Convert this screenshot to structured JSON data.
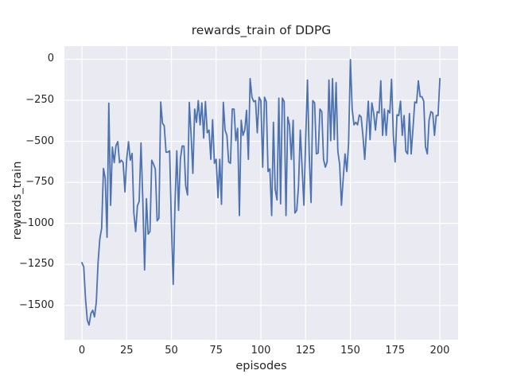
{
  "figure": {
    "title": "rewards_train of DDPG",
    "xlabel": "episodes",
    "ylabel": "rewards_train"
  },
  "chart_data": {
    "type": "line",
    "title": "rewards_train of DDPG",
    "xlabel": "episodes",
    "ylabel": "rewards_train",
    "grid": true,
    "legend": false,
    "xlim": [
      -9.8,
      210.2
    ],
    "ylim": [
      -1710,
      80
    ],
    "x_ticks": {
      "values": [
        0,
        25,
        50,
        75,
        100,
        125,
        150,
        175,
        200
      ],
      "labels": [
        "0",
        "25",
        "50",
        "75",
        "100",
        "125",
        "150",
        "175",
        "200"
      ]
    },
    "y_ticks": {
      "values": [
        0,
        -250,
        -500,
        -750,
        -1000,
        -1250,
        -1500
      ],
      "labels": [
        "0",
        "−250",
        "−500",
        "−750",
        "−1000",
        "−1250",
        "−1500"
      ]
    },
    "styles": {
      "fig_bg": "#ffffff",
      "axes_bg": "#eaeaf2",
      "grid_color": "#ffffff",
      "line_color": "#4c72b0",
      "text_color": "#262626",
      "line_width": 1.8
    },
    "series": [
      {
        "name": "rewards_train",
        "color": "#4c72b0",
        "x_start": 0,
        "x_step": 1,
        "y": [
          -1240,
          -1265,
          -1465,
          -1590,
          -1620,
          -1550,
          -1530,
          -1570,
          -1480,
          -1240,
          -1095,
          -1030,
          -665,
          -725,
          -1085,
          -268,
          -890,
          -535,
          -630,
          -527,
          -502,
          -630,
          -615,
          -630,
          -808,
          -608,
          -502,
          -615,
          -574,
          -937,
          -1050,
          -893,
          -866,
          -510,
          -850,
          -1284,
          -850,
          -1066,
          -1050,
          -615,
          -640,
          -670,
          -985,
          -969,
          -260,
          -390,
          -405,
          -566,
          -566,
          -558,
          -1000,
          -1372,
          -889,
          -558,
          -921,
          -609,
          -529,
          -529,
          -771,
          -827,
          -263,
          -464,
          -695,
          -303,
          -384,
          -252,
          -400,
          -266,
          -480,
          -258,
          -448,
          -432,
          -610,
          -368,
          -634,
          -610,
          -843,
          -610,
          -884,
          -263,
          -432,
          -464,
          -626,
          -634,
          -303,
          -303,
          -496,
          -421,
          -953,
          -372,
          -464,
          -432,
          -311,
          -610,
          -118,
          -231,
          -258,
          -252,
          -448,
          -231,
          -252,
          -658,
          -231,
          -258,
          -684,
          -668,
          -953,
          -384,
          -792,
          -857,
          -237,
          -881,
          -237,
          -258,
          -953,
          -352,
          -400,
          -610,
          -372,
          -937,
          -921,
          -776,
          -432,
          -658,
          -889,
          -496,
          -126,
          -577,
          -873,
          -252,
          -266,
          -577,
          -571,
          -303,
          -319,
          -610,
          -658,
          -626,
          -126,
          -496,
          -118,
          -490,
          -142,
          -561,
          -642,
          -889,
          -723,
          -577,
          -684,
          -512,
          -2,
          -303,
          -400,
          -384,
          -400,
          -339,
          -352,
          -464,
          -610,
          -432,
          -255,
          -490,
          -266,
          -327,
          -432,
          -319,
          -327,
          -131,
          -464,
          -303,
          -464,
          -311,
          -327,
          -122,
          -464,
          -626,
          -339,
          -343,
          -255,
          -464,
          -343,
          -561,
          -577,
          -331,
          -577,
          -421,
          -260,
          -266,
          -131,
          -228,
          -228,
          -255,
          -533,
          -577,
          -372,
          -319,
          -327,
          -464,
          -343,
          -343,
          -118
        ]
      }
    ]
  }
}
